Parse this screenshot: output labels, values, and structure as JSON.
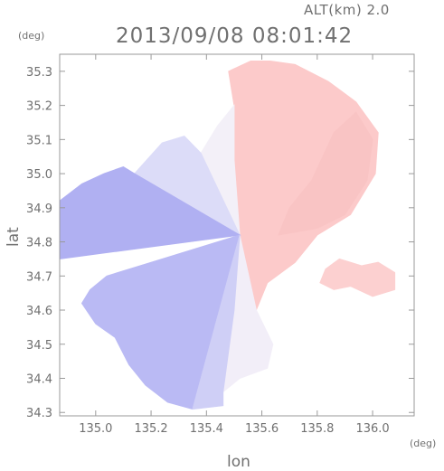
{
  "header": {
    "altitude_label": "ALT(km)  2.0",
    "timestamp": "2013/09/08 08:01:42"
  },
  "chart_data": {
    "type": "heatmap",
    "title": "2013/09/08 08:01:42",
    "subtitle": "ALT(km)  2.0",
    "xlabel": "lon",
    "ylabel": "lat",
    "x_unit": "(deg)",
    "y_unit": "(deg)",
    "xlim": [
      134.87,
      136.15
    ],
    "ylim": [
      34.29,
      35.35
    ],
    "x_ticks": [
      135.0,
      135.2,
      135.4,
      135.6,
      135.8,
      136.0
    ],
    "x_tick_labels": [
      "135.0",
      "135.2",
      "135.4",
      "135.6",
      "135.8",
      "136.0"
    ],
    "y_ticks": [
      34.3,
      34.4,
      34.5,
      34.6,
      34.7,
      34.8,
      34.9,
      35.0,
      35.1,
      35.2,
      35.3
    ],
    "y_tick_labels": [
      "34.3",
      "34.4",
      "34.5",
      "34.6",
      "34.7",
      "34.8",
      "34.9",
      "35.0",
      "35.1",
      "35.2",
      "35.3"
    ],
    "grid": false,
    "radar_center": {
      "lon": 135.52,
      "lat": 34.82
    },
    "colors": {
      "approaching": "#a9a9f2",
      "receding": "#f9bebe",
      "axis": "#9a9a9a"
    },
    "regions": [
      {
        "name": "receding-north-east",
        "color": "#fccaca",
        "polygon": [
          [
            135.52,
            34.82
          ],
          [
            135.5,
            35.04
          ],
          [
            135.5,
            35.2
          ],
          [
            135.48,
            35.3
          ],
          [
            135.56,
            35.33
          ],
          [
            135.63,
            35.33
          ],
          [
            135.72,
            35.32
          ],
          [
            135.84,
            35.27
          ],
          [
            135.94,
            35.21
          ],
          [
            136.02,
            35.12
          ],
          [
            136.01,
            35.0
          ],
          [
            135.92,
            34.88
          ],
          [
            135.8,
            34.82
          ],
          [
            135.72,
            34.74
          ],
          [
            135.62,
            34.68
          ],
          [
            135.58,
            34.6
          ]
        ]
      },
      {
        "name": "receding-far-east",
        "color": "#f9c4c4",
        "polygon": [
          [
            135.66,
            34.82
          ],
          [
            135.8,
            34.84
          ],
          [
            135.9,
            34.88
          ],
          [
            135.98,
            34.98
          ],
          [
            136.0,
            35.1
          ],
          [
            135.94,
            35.18
          ],
          [
            135.86,
            35.12
          ],
          [
            135.78,
            34.98
          ],
          [
            135.7,
            34.9
          ]
        ]
      },
      {
        "name": "receding-east-island",
        "color": "#fcd0d0",
        "polygon": [
          [
            135.83,
            34.72
          ],
          [
            135.88,
            34.75
          ],
          [
            135.96,
            34.73
          ],
          [
            136.02,
            34.74
          ],
          [
            136.08,
            34.71
          ],
          [
            136.08,
            34.66
          ],
          [
            136.0,
            34.64
          ],
          [
            135.92,
            34.67
          ],
          [
            135.86,
            34.66
          ],
          [
            135.81,
            34.68
          ]
        ]
      },
      {
        "name": "transition-north",
        "color": "#f3f0f8",
        "polygon": [
          [
            135.52,
            34.82
          ],
          [
            135.38,
            35.06
          ],
          [
            135.44,
            35.14
          ],
          [
            135.5,
            35.2
          ],
          [
            135.5,
            35.04
          ]
        ]
      },
      {
        "name": "transition-south",
        "color": "#f2eef8",
        "polygon": [
          [
            135.52,
            34.82
          ],
          [
            135.58,
            34.6
          ],
          [
            135.64,
            34.5
          ],
          [
            135.62,
            34.43
          ],
          [
            135.52,
            34.4
          ],
          [
            135.46,
            34.36
          ],
          [
            135.5,
            34.6
          ]
        ]
      },
      {
        "name": "approaching-north",
        "color": "#dcdcf8",
        "polygon": [
          [
            135.52,
            34.82
          ],
          [
            135.14,
            35.0
          ],
          [
            135.24,
            35.09
          ],
          [
            135.32,
            35.11
          ],
          [
            135.38,
            35.06
          ]
        ]
      },
      {
        "name": "approaching-west",
        "color": "#b0b0f2",
        "polygon": [
          [
            135.52,
            34.82
          ],
          [
            134.87,
            34.75
          ],
          [
            134.87,
            34.92
          ],
          [
            134.95,
            34.97
          ],
          [
            135.03,
            35.0
          ],
          [
            135.1,
            35.02
          ],
          [
            135.14,
            35.0
          ]
        ]
      },
      {
        "name": "approaching-south-west",
        "color": "#babaf4",
        "polygon": [
          [
            135.52,
            34.82
          ],
          [
            135.2,
            34.74
          ],
          [
            135.04,
            34.7
          ],
          [
            134.98,
            34.66
          ],
          [
            134.95,
            34.62
          ],
          [
            135.0,
            34.56
          ],
          [
            135.07,
            34.52
          ],
          [
            135.12,
            34.44
          ],
          [
            135.18,
            34.38
          ],
          [
            135.26,
            34.33
          ],
          [
            135.35,
            34.31
          ]
        ]
      },
      {
        "name": "approaching-south",
        "color": "#cfcff6",
        "polygon": [
          [
            135.52,
            34.82
          ],
          [
            135.35,
            34.31
          ],
          [
            135.46,
            34.32
          ],
          [
            135.46,
            34.36
          ],
          [
            135.5,
            34.6
          ]
        ]
      }
    ]
  }
}
